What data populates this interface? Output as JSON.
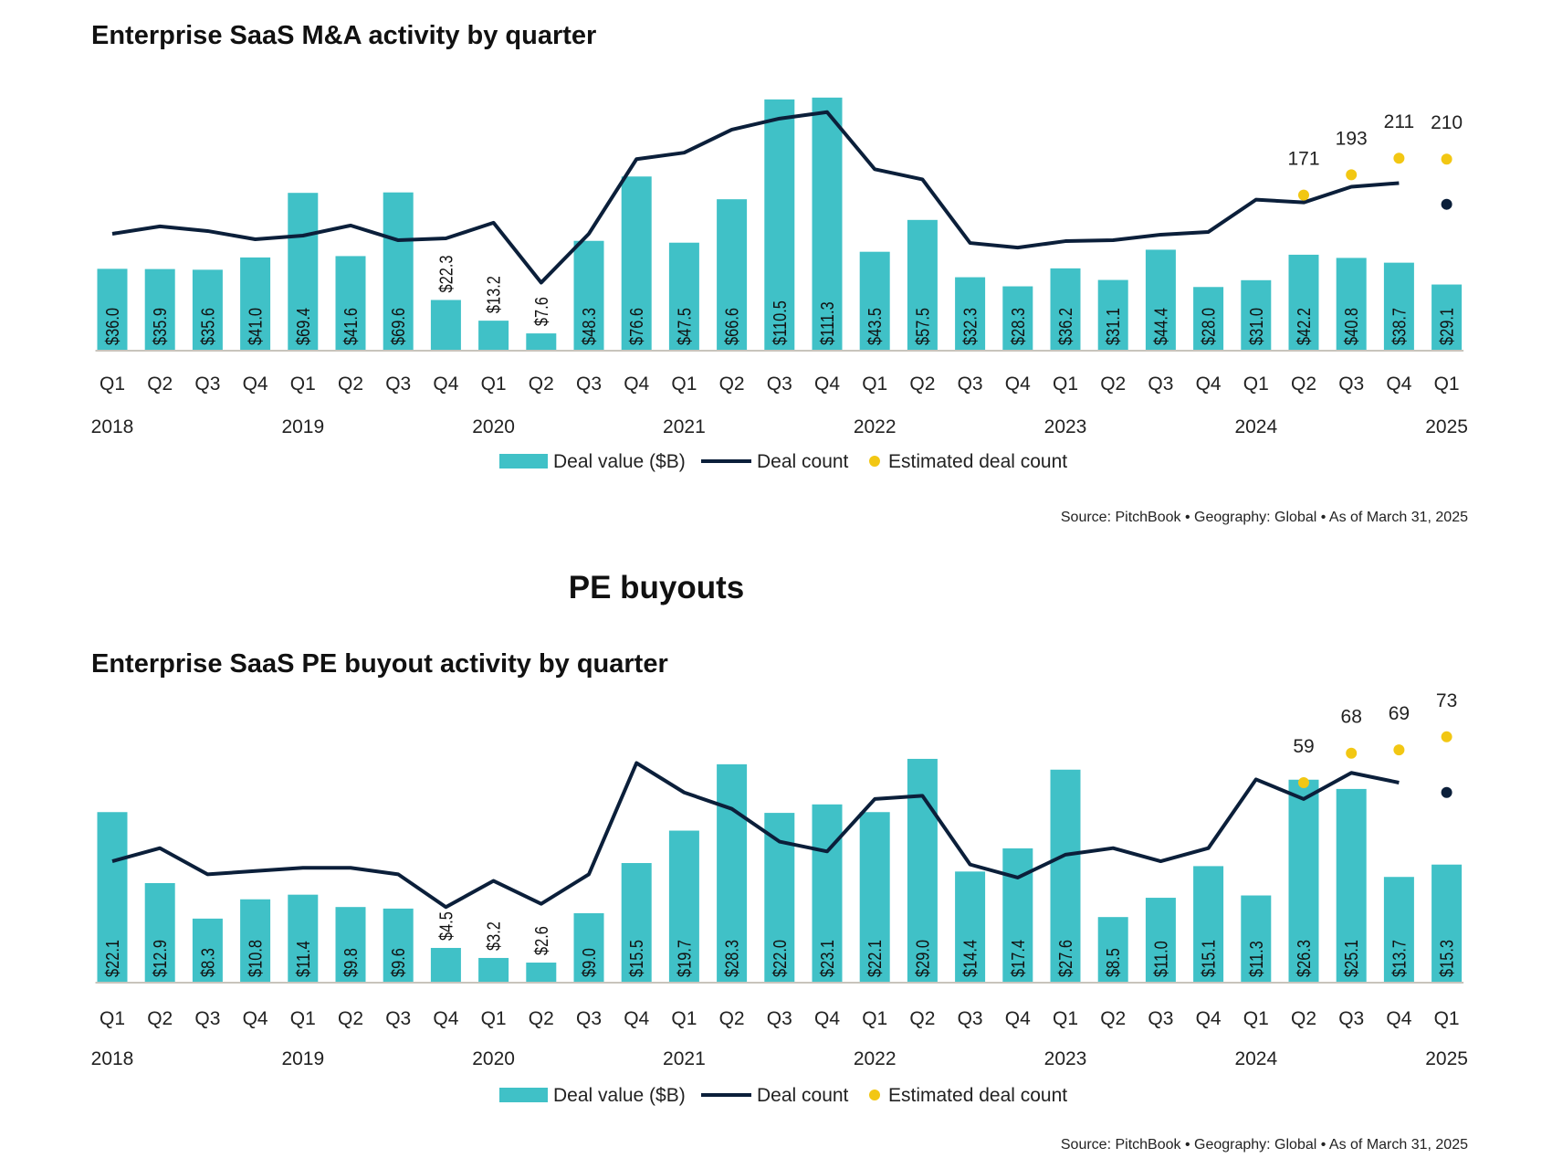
{
  "colors": {
    "bar": "#40c1c7",
    "line": "#0b1f3a",
    "estimate": "#f2c713",
    "axis": "#c8c4bc"
  },
  "section_title": "PE buyouts",
  "chart_data": [
    {
      "type": "bar",
      "title": "Enterprise SaaS M&A activity by quarter",
      "categories": [
        "Q1",
        "Q2",
        "Q3",
        "Q4",
        "Q1",
        "Q2",
        "Q3",
        "Q4",
        "Q1",
        "Q2",
        "Q3",
        "Q4",
        "Q1",
        "Q2",
        "Q3",
        "Q4",
        "Q1",
        "Q2",
        "Q3",
        "Q4",
        "Q1",
        "Q2",
        "Q3",
        "Q4",
        "Q1",
        "Q2",
        "Q3",
        "Q4",
        "Q1"
      ],
      "years": [
        {
          "label": "2018",
          "index": 0
        },
        {
          "label": "2019",
          "index": 4
        },
        {
          "label": "2020",
          "index": 8
        },
        {
          "label": "2021",
          "index": 12
        },
        {
          "label": "2022",
          "index": 16
        },
        {
          "label": "2023",
          "index": 20
        },
        {
          "label": "2024",
          "index": 24
        },
        {
          "label": "2025",
          "index": 28
        }
      ],
      "series": [
        {
          "name": "Deal value ($B)",
          "type": "bar",
          "values": [
            36.0,
            35.9,
            35.6,
            41.0,
            69.4,
            41.6,
            69.6,
            22.3,
            13.2,
            7.6,
            48.3,
            76.6,
            47.5,
            66.6,
            110.5,
            111.3,
            43.5,
            57.5,
            32.3,
            28.3,
            36.2,
            31.1,
            44.4,
            28.0,
            31.0,
            42.2,
            40.8,
            38.7,
            29.1
          ],
          "labels": [
            "$36.0",
            "$35.9",
            "$35.6",
            "$41.0",
            "$69.4",
            "$41.6",
            "$69.6",
            "$22.3",
            "$13.2",
            "$7.6",
            "$48.3",
            "$76.6",
            "$47.5",
            "$66.6",
            "$110.5",
            "$111.3",
            "$43.5",
            "$57.5",
            "$32.3",
            "$28.3",
            "$36.2",
            "$31.1",
            "$44.4",
            "$28.0",
            "$31.0",
            "$42.2",
            "$40.8",
            "$38.7",
            "$29.1"
          ]
        },
        {
          "name": "Deal count",
          "type": "line",
          "values": [
            129,
            137,
            132,
            123,
            127,
            138,
            122,
            124,
            141,
            76,
            129,
            210,
            217,
            242,
            254,
            261,
            199,
            188,
            119,
            114,
            121,
            122,
            128,
            131,
            166,
            163,
            180,
            184,
            161
          ]
        },
        {
          "name": "Estimated deal count",
          "type": "scatter",
          "points": [
            {
              "index": 25,
              "value": 171
            },
            {
              "index": 26,
              "value": 193
            },
            {
              "index": 27,
              "value": 211
            },
            {
              "index": 28,
              "value": 210
            }
          ]
        }
      ],
      "legend_position": "bottom",
      "source": "Source: PitchBook  •  Geography: Global  •  As of March 31, 2025"
    },
    {
      "type": "bar",
      "title": "Enterprise SaaS PE buyout activity by quarter",
      "categories": [
        "Q1",
        "Q2",
        "Q3",
        "Q4",
        "Q1",
        "Q2",
        "Q3",
        "Q4",
        "Q1",
        "Q2",
        "Q3",
        "Q4",
        "Q1",
        "Q2",
        "Q3",
        "Q4",
        "Q1",
        "Q2",
        "Q3",
        "Q4",
        "Q1",
        "Q2",
        "Q3",
        "Q4",
        "Q1",
        "Q2",
        "Q3",
        "Q4",
        "Q1"
      ],
      "years": [
        {
          "label": "2018",
          "index": 0
        },
        {
          "label": "2019",
          "index": 4
        },
        {
          "label": "2020",
          "index": 8
        },
        {
          "label": "2021",
          "index": 12
        },
        {
          "label": "2022",
          "index": 16
        },
        {
          "label": "2023",
          "index": 20
        },
        {
          "label": "2024",
          "index": 24
        },
        {
          "label": "2025",
          "index": 28
        }
      ],
      "series": [
        {
          "name": "Deal value ($B)",
          "type": "bar",
          "values": [
            22.1,
            12.9,
            8.3,
            10.8,
            11.4,
            9.8,
            9.6,
            4.5,
            3.2,
            2.6,
            9.0,
            15.5,
            19.7,
            28.3,
            22.0,
            23.1,
            22.1,
            29.0,
            14.4,
            17.4,
            27.6,
            8.5,
            11.0,
            15.1,
            11.3,
            26.3,
            25.1,
            13.7,
            15.3
          ],
          "labels": [
            "$22.1",
            "$12.9",
            "$8.3",
            "$10.8",
            "$11.4",
            "$9.8",
            "$9.6",
            "$4.5",
            "$3.2",
            "$2.6",
            "$9.0",
            "$15.5",
            "$19.7",
            "$28.3",
            "$22.0",
            "$23.1",
            "$22.1",
            "$29.0",
            "$14.4",
            "$17.4",
            "$27.6",
            "$8.5",
            "$11.0",
            "$15.1",
            "$11.3",
            "$26.3",
            "$25.1",
            "$13.7",
            "$15.3"
          ]
        },
        {
          "name": "Deal count",
          "type": "line",
          "values": [
            35,
            39,
            31,
            32,
            33,
            33,
            31,
            21,
            29,
            22,
            31,
            65,
            56,
            51,
            41,
            38,
            54,
            55,
            34,
            30,
            37,
            39,
            35,
            39,
            60,
            54,
            62,
            59,
            56
          ]
        },
        {
          "name": "Estimated deal count",
          "type": "scatter",
          "points": [
            {
              "index": 25,
              "value": 59
            },
            {
              "index": 26,
              "value": 68
            },
            {
              "index": 27,
              "value": 69
            },
            {
              "index": 28,
              "value": 73
            }
          ]
        }
      ],
      "legend_position": "bottom",
      "source": "Source: PitchBook  •  Geography: Global  •  As of March 31, 2025"
    }
  ]
}
